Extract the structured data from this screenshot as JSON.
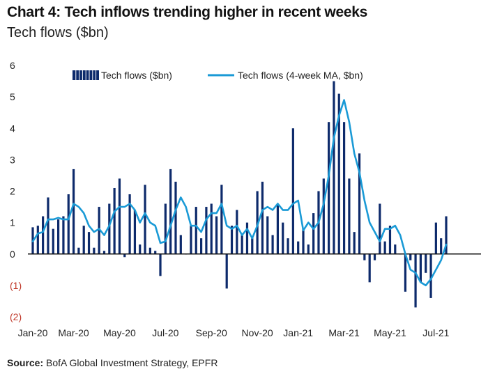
{
  "header": {
    "title": "Chart 4: Tech inflows trending higher in recent weeks",
    "subtitle": "Tech flows ($bn)"
  },
  "footer": {
    "source_label": "Source:",
    "source_text": "BofA Global Investment Strategy, EPFR"
  },
  "colors": {
    "bar_fill": "#0d2a6b",
    "line": "#1a9ad6",
    "negative_tick": "#c0392b"
  },
  "chart_data": {
    "type": "bar",
    "ylim": [
      -2,
      6
    ],
    "grid": false,
    "legend_position": "top",
    "y_ticks": [
      {
        "value": 6,
        "label": "6"
      },
      {
        "value": 5,
        "label": "5"
      },
      {
        "value": 4,
        "label": "4"
      },
      {
        "value": 3,
        "label": "3"
      },
      {
        "value": 2,
        "label": "2"
      },
      {
        "value": 1,
        "label": "1"
      },
      {
        "value": 0,
        "label": "0"
      },
      {
        "value": -1,
        "label": "(1)"
      },
      {
        "value": -2,
        "label": "(2)"
      }
    ],
    "x_tick_labels": [
      {
        "index": 0,
        "label": "Jan-20"
      },
      {
        "index": 8,
        "label": "Mar-20"
      },
      {
        "index": 17,
        "label": "May-20"
      },
      {
        "index": 26,
        "label": "Jul-20"
      },
      {
        "index": 35,
        "label": "Sep-20"
      },
      {
        "index": 44,
        "label": "Nov-20"
      },
      {
        "index": 52,
        "label": "Jan-21"
      },
      {
        "index": 61,
        "label": "Mar-21"
      },
      {
        "index": 70,
        "label": "May-21"
      },
      {
        "index": 79,
        "label": "Jul-21"
      }
    ],
    "series": [
      {
        "name": "Tech flows ($bn)",
        "type": "bar",
        "values": [
          0.85,
          0.9,
          1.2,
          1.8,
          0.8,
          1.1,
          1.2,
          1.9,
          2.7,
          0.2,
          0.9,
          0.7,
          0.2,
          1.5,
          0.1,
          1.6,
          2.1,
          2.4,
          -0.1,
          1.9,
          1.4,
          0.3,
          2.2,
          0.2,
          0.1,
          -0.7,
          1.6,
          2.7,
          2.3,
          0.6,
          0.0,
          0.9,
          1.5,
          0.5,
          1.5,
          1.6,
          1.2,
          2.2,
          -1.1,
          0.9,
          1.4,
          0.6,
          1.0,
          0.5,
          2.0,
          2.3,
          1.2,
          0.6,
          1.6,
          1.0,
          0.5,
          4.0,
          0.4,
          0.8,
          0.3,
          1.3,
          2.0,
          2.4,
          4.2,
          5.5,
          5.1,
          4.2,
          2.4,
          0.7,
          3.2,
          -0.2,
          -0.9,
          -0.2,
          1.6,
          0.4,
          0.9,
          0.3,
          0.0,
          -1.2,
          -0.2,
          -1.7,
          -0.9,
          -0.6,
          -1.4,
          1.0,
          0.5,
          1.2
        ],
        "color": "#0d2a6b"
      },
      {
        "name": "Tech flows (4-week MA, $bn)",
        "type": "line",
        "values": [
          0.4,
          0.65,
          0.7,
          1.1,
          1.1,
          1.15,
          1.1,
          1.1,
          1.6,
          1.5,
          1.3,
          0.9,
          0.7,
          0.8,
          0.6,
          0.9,
          1.35,
          1.5,
          1.5,
          1.6,
          1.4,
          1.0,
          1.3,
          1.0,
          0.9,
          0.35,
          0.4,
          0.9,
          1.4,
          1.8,
          1.5,
          0.9,
          0.9,
          0.7,
          1.1,
          1.3,
          1.3,
          1.6,
          0.9,
          0.8,
          0.9,
          0.6,
          0.8,
          0.5,
          0.9,
          1.4,
          1.5,
          1.4,
          1.6,
          1.4,
          1.4,
          1.6,
          1.7,
          0.75,
          1.0,
          0.8,
          1.0,
          1.6,
          2.5,
          3.7,
          4.4,
          4.9,
          4.2,
          3.2,
          2.6,
          1.7,
          1.0,
          0.7,
          0.4,
          0.8,
          0.8,
          0.9,
          0.6,
          0.0,
          -0.5,
          -0.6,
          -0.9,
          -1.0,
          -0.8,
          -0.5,
          -0.2,
          0.3
        ]
      }
    ]
  }
}
